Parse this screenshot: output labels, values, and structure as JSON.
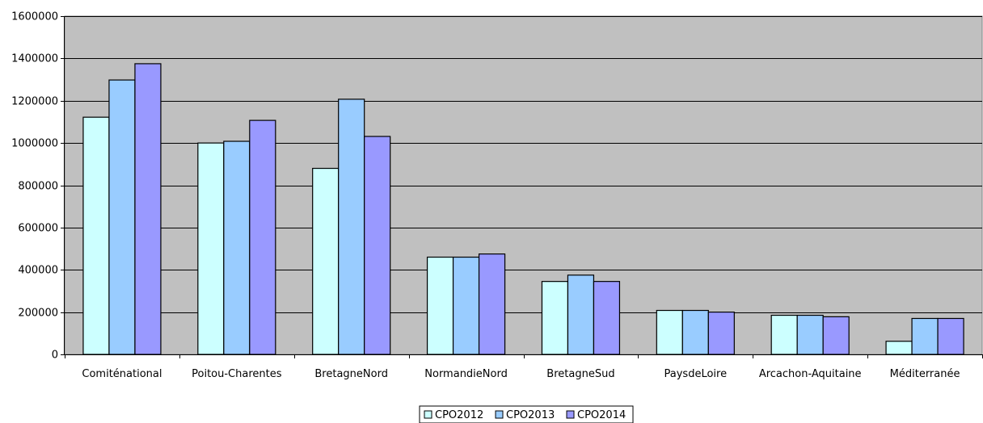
{
  "chart_data": {
    "type": "bar",
    "title": "",
    "xlabel": "",
    "ylabel": "",
    "categories": [
      "Comiténational",
      "Poitou-Charentes",
      "BretagneNord",
      "NormandieNord",
      "BretagneSud",
      "PaysdeLoire",
      "Arcachon-Aquitaine",
      "Méditerranée"
    ],
    "series": [
      {
        "name": "CPO2012",
        "color": "#ccffff",
        "values": [
          1122000,
          1000000,
          880000,
          460000,
          345000,
          208000,
          185000,
          62000
        ]
      },
      {
        "name": "CPO2013",
        "color": "#99ccff",
        "values": [
          1298000,
          1008000,
          1207000,
          460000,
          375000,
          208000,
          185000,
          170000
        ]
      },
      {
        "name": "CPO2014",
        "color": "#9999ff",
        "values": [
          1375000,
          1107000,
          1031000,
          475000,
          345000,
          200000,
          178000,
          170000
        ]
      }
    ],
    "ylim": [
      0,
      1600000
    ],
    "yticks": [
      "0",
      "200000",
      "400000",
      "600000",
      "800000",
      "1000000",
      "1200000",
      "1400000",
      "1600000"
    ],
    "grid": true,
    "plot_background": "#c0c0c0",
    "legend_position": "bottom"
  }
}
